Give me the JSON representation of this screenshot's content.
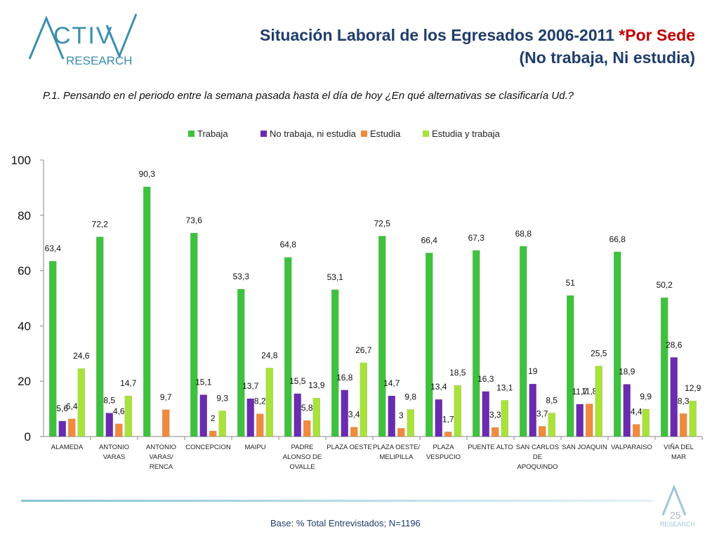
{
  "header": {
    "title_main": "Situación Laboral de los Egresados 2006-2011",
    "title_accent": "*Por Sede",
    "title_line2": "(No trabaja, Ni estudia)"
  },
  "brand": {
    "logo_text_top": "ACTIVA",
    "logo_text_bottom": "RESEARCH",
    "color": "#3b8fae"
  },
  "question": "P.1.  Pensando en el periodo entre la semana pasada hasta el día de hoy ¿En qué alternativas se clasificaría Ud.?",
  "footer": {
    "base": "Base: % Total Entrevistados; N=1196",
    "page_number": "25",
    "small_logo_text": "RESEARCH"
  },
  "chart_data": {
    "type": "bar",
    "categories": [
      "ALAMEDA",
      "ANTONIO VARAS",
      "ANTONIO VARAS/ RENCA",
      "CONCEPCION",
      "MAIPU",
      "PADRE ALONSO DE OVALLE",
      "PLAZA OESTE",
      "PLAZA OESTE/ MELIPILLA",
      "PLAZA VESPUCIO",
      "PUENTE ALTO",
      "SAN CARLOS DE APOQUINDO",
      "SAN JOAQUIN",
      "VALPARAISO",
      "VIÑA DEL MAR"
    ],
    "category_lines": [
      [
        "ALAMEDA"
      ],
      [
        "ANTONIO",
        "VARAS"
      ],
      [
        "ANTONIO",
        "VARAS/",
        "RENCA"
      ],
      [
        "CONCEPCION"
      ],
      [
        "MAIPU"
      ],
      [
        "PADRE",
        "ALONSO DE",
        "OVALLE"
      ],
      [
        "PLAZA OESTE"
      ],
      [
        "PLAZA OESTE/",
        "MELIPILLA"
      ],
      [
        "PLAZA",
        "VESPUCIO"
      ],
      [
        "PUENTE ALTO"
      ],
      [
        "SAN CARLOS",
        "DE",
        "APOQUINDO"
      ],
      [
        "SAN JOAQUIN"
      ],
      [
        "VALPARAISO"
      ],
      [
        "VIÑA DEL",
        "MAR"
      ]
    ],
    "series": [
      {
        "name": "Trabaja",
        "color": "#3ec23e",
        "values": [
          63.4,
          72.2,
          90.3,
          73.6,
          53.3,
          64.8,
          53.1,
          72.5,
          66.4,
          67.3,
          68.8,
          51,
          66.8,
          50.2
        ]
      },
      {
        "name": "No trabaja, ni estudia",
        "color": "#6a2bb0",
        "values": [
          5.6,
          8.5,
          null,
          15.1,
          13.7,
          15.5,
          16.8,
          14.7,
          13.4,
          16.3,
          19,
          11.7,
          18.9,
          28.6
        ]
      },
      {
        "name": "Estudia",
        "color": "#f08a3c",
        "values": [
          6.4,
          4.6,
          9.7,
          2,
          8.2,
          5.8,
          3.4,
          3,
          1.7,
          3.3,
          3.7,
          11.8,
          4.4,
          8.3
        ]
      },
      {
        "name": "Estudia y trabaja",
        "color": "#a9e23a",
        "values": [
          24.6,
          14.7,
          null,
          9.3,
          24.8,
          13.9,
          26.7,
          9.8,
          18.5,
          13.1,
          8.5,
          25.5,
          9.9,
          12.9
        ]
      }
    ],
    "ylim": [
      0,
      100
    ],
    "yticks": [
      0,
      20,
      40,
      60,
      80,
      100
    ],
    "grid": false,
    "legend_position": "top"
  }
}
